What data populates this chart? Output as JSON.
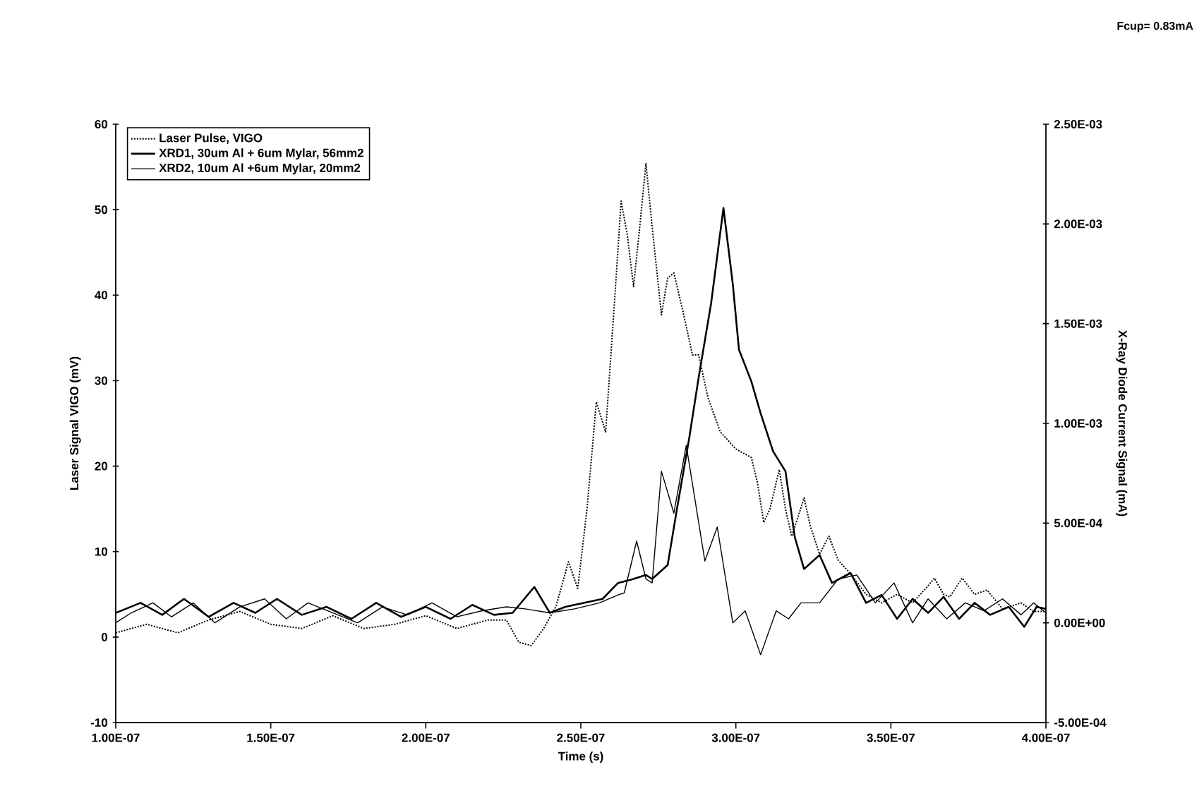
{
  "chart_data": {
    "type": "line",
    "title": "Fcup= 0.83mA",
    "xlabel": "Time (s)",
    "ylabel": "Laser Signal VIGO (mV)",
    "y2label": "X-Ray Diode Current Signal (mA)",
    "xlim": [
      1e-07,
      4e-07
    ],
    "xticks": [
      {
        "value": 1e-07,
        "label": "1.00E-07"
      },
      {
        "value": 1.5e-07,
        "label": "1.50E-07"
      },
      {
        "value": 2e-07,
        "label": "2.00E-07"
      },
      {
        "value": 2.5e-07,
        "label": "2.50E-07"
      },
      {
        "value": 3e-07,
        "label": "3.00E-07"
      },
      {
        "value": 3.5e-07,
        "label": "3.50E-07"
      },
      {
        "value": 4e-07,
        "label": "4.00E-07"
      }
    ],
    "ylim": [
      -10,
      60
    ],
    "yticks": [
      -10,
      0,
      10,
      20,
      30,
      40,
      50,
      60
    ],
    "y2lim": [
      -0.0005,
      0.0025
    ],
    "y2ticks": [
      {
        "value": -0.0005,
        "label": "-5.00E-04"
      },
      {
        "value": 0,
        "label": "0.00E+00"
      },
      {
        "value": 0.0005,
        "label": "5.00E-04"
      },
      {
        "value": 0.001,
        "label": "1.00E-03"
      },
      {
        "value": 0.0015,
        "label": "1.50E-03"
      },
      {
        "value": 0.002,
        "label": "2.00E-03"
      },
      {
        "value": 0.0025,
        "label": "2.50E-03"
      }
    ],
    "grid": false,
    "legend": "top left",
    "marker": "none",
    "series": [
      {
        "name": "Laser Pulse, VIGO",
        "color": "#000000",
        "line_style": "dotted",
        "x": [
          1e-07,
          1.1e-07,
          1.2e-07,
          1.3e-07,
          1.4e-07,
          1.5e-07,
          1.6e-07,
          1.7e-07,
          1.8e-07,
          1.9e-07,
          2e-07,
          2.1e-07,
          2.2e-07,
          2.26e-07,
          2.3e-07,
          2.34e-07,
          2.38e-07,
          2.42e-07,
          2.46e-07,
          2.49e-07,
          2.52e-07,
          2.55e-07,
          2.58e-07,
          2.61e-07,
          2.63e-07,
          2.65e-07,
          2.67e-07,
          2.69e-07,
          2.71e-07,
          2.73e-07,
          2.76e-07,
          2.78e-07,
          2.8e-07,
          2.83e-07,
          2.86e-07,
          2.88e-07,
          2.91e-07,
          2.95e-07,
          3e-07,
          3.05e-07,
          3.07e-07,
          3.09e-07,
          3.11e-07,
          3.14e-07,
          3.16e-07,
          3.18e-07,
          3.2e-07,
          3.22e-07,
          3.24e-07,
          3.27e-07,
          3.3e-07,
          3.33e-07,
          3.37e-07,
          3.42e-07,
          3.47e-07,
          3.52e-07,
          3.57e-07,
          3.62e-07,
          3.64e-07,
          3.67e-07,
          3.69e-07,
          3.73e-07,
          3.77e-07,
          3.81e-07,
          3.86e-07,
          3.92e-07,
          3.96e-07,
          4e-07
        ],
        "values": [
          0.5,
          1.5,
          0.5,
          2,
          3,
          1.5,
          1,
          2.5,
          1,
          1.5,
          2.5,
          1,
          2,
          2,
          -0.6,
          -1,
          1,
          3.6,
          8.8,
          5.7,
          15,
          27.5,
          24,
          40,
          51,
          47,
          41,
          48,
          55.4,
          48,
          37.7,
          42,
          42.6,
          38,
          33,
          33,
          28,
          24,
          22,
          21,
          18,
          13.4,
          15,
          19.6,
          15,
          11.8,
          14,
          16.3,
          13,
          9.7,
          11.8,
          9,
          7.4,
          5,
          4,
          5,
          4,
          6,
          6.9,
          5,
          4.7,
          6.9,
          5,
          5.5,
          3.3,
          4,
          3,
          3
        ]
      },
      {
        "name": "XRD1, 30um Al + 6um Mylar, 56mm2",
        "color": "#000000",
        "line_style": "solid",
        "axis": "y2",
        "x": [
          1e-07,
          1.08e-07,
          1.15e-07,
          1.22e-07,
          1.3e-07,
          1.38e-07,
          1.45e-07,
          1.52e-07,
          1.6e-07,
          1.68e-07,
          1.76e-07,
          1.84e-07,
          1.92e-07,
          2e-07,
          2.08e-07,
          2.15e-07,
          2.22e-07,
          2.28e-07,
          2.35e-07,
          2.4e-07,
          2.45e-07,
          2.51e-07,
          2.57e-07,
          2.62e-07,
          2.67e-07,
          2.71e-07,
          2.73e-07,
          2.78e-07,
          2.81e-07,
          2.85e-07,
          2.88e-07,
          2.92e-07,
          2.96e-07,
          2.99e-07,
          3.01e-07,
          3.05e-07,
          3.08e-07,
          3.12e-07,
          3.16e-07,
          3.19e-07,
          3.22e-07,
          3.27e-07,
          3.31e-07,
          3.37e-07,
          3.42e-07,
          3.47e-07,
          3.52e-07,
          3.57e-07,
          3.62e-07,
          3.67e-07,
          3.72e-07,
          3.77e-07,
          3.82e-07,
          3.88e-07,
          3.93e-07,
          3.97e-07,
          4e-07
        ],
        "values": [
          5e-05,
          0.0001,
          4e-05,
          0.00012,
          3e-05,
          0.0001,
          5e-05,
          0.00012,
          4e-05,
          8e-05,
          2e-05,
          0.0001,
          3e-05,
          8e-05,
          2e-05,
          9e-05,
          4e-05,
          5e-05,
          0.00018,
          5e-05,
          8e-05,
          0.0001,
          0.00012,
          0.0002,
          0.00022,
          0.00024,
          0.00022,
          0.00029,
          0.00057,
          0.00093,
          0.00123,
          0.0016,
          0.00208,
          0.0017,
          0.00137,
          0.00121,
          0.00105,
          0.00086,
          0.00076,
          0.00043,
          0.00027,
          0.00034,
          0.0002,
          0.00025,
          0.0001,
          0.00014,
          2e-05,
          0.00012,
          5e-05,
          0.00013,
          2e-05,
          0.0001,
          4e-05,
          8e-05,
          -2e-05,
          8e-05,
          7e-05
        ]
      },
      {
        "name": "XRD2, 10um Al +6um Mylar, 20mm2",
        "color": "#000000",
        "line_style": "solid",
        "axis": "y2",
        "x": [
          1e-07,
          1.05e-07,
          1.12e-07,
          1.18e-07,
          1.25e-07,
          1.32e-07,
          1.4e-07,
          1.48e-07,
          1.55e-07,
          1.62e-07,
          1.7e-07,
          1.78e-07,
          1.86e-07,
          1.94e-07,
          2.02e-07,
          2.1e-07,
          2.18e-07,
          2.26e-07,
          2.32e-07,
          2.4e-07,
          2.48e-07,
          2.56e-07,
          2.62e-07,
          2.64e-07,
          2.68e-07,
          2.71e-07,
          2.73e-07,
          2.76e-07,
          2.8e-07,
          2.84e-07,
          2.87e-07,
          2.9e-07,
          2.94e-07,
          2.99e-07,
          3.03e-07,
          3.08e-07,
          3.13e-07,
          3.17e-07,
          3.21e-07,
          3.27e-07,
          3.33e-07,
          3.39e-07,
          3.45e-07,
          3.51e-07,
          3.57e-07,
          3.62e-07,
          3.68e-07,
          3.74e-07,
          3.8e-07,
          3.86e-07,
          3.92e-07,
          3.96e-07,
          4e-07
        ],
        "values": [
          0,
          5e-05,
          0.0001,
          3e-05,
          0.0001,
          0,
          8e-05,
          0.00012,
          2e-05,
          0.0001,
          5e-05,
          0,
          8e-05,
          4e-05,
          0.0001,
          3e-05,
          6e-05,
          8e-05,
          7e-05,
          5e-05,
          7e-05,
          0.0001,
          0.00014,
          0.00015,
          0.00041,
          0.00022,
          0.0002,
          0.00076,
          0.00055,
          0.00089,
          0.0006,
          0.00031,
          0.00048,
          0,
          6e-05,
          -0.00016,
          6e-05,
          2e-05,
          0.0001,
          0.0001,
          0.00022,
          0.00024,
          0.0001,
          0.0002,
          0,
          0.00012,
          2e-05,
          0.0001,
          6e-05,
          0.00012,
          4e-05,
          0.0001,
          5e-05
        ]
      }
    ]
  }
}
